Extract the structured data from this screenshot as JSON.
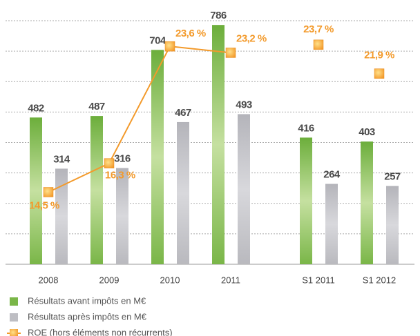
{
  "chart_data": {
    "type": "bar",
    "categories": [
      "2008",
      "2009",
      "2010",
      "2011",
      "S1 2011",
      "S1 2012"
    ],
    "ylim": [
      0,
      800
    ],
    "yticks": [
      0,
      100,
      200,
      300,
      400,
      500,
      600,
      700,
      800
    ],
    "grid": true,
    "y2lim": [
      10,
      25.2
    ],
    "series": [
      {
        "name": "Résultats avant impôts en M€",
        "color": "#7ab648",
        "values": [
          482,
          487,
          704,
          786,
          416,
          403
        ]
      },
      {
        "name": "Résultats après impôts en M€",
        "color": "#bebec3",
        "values": [
          314,
          316,
          467,
          493,
          264,
          257
        ]
      },
      {
        "name": "ROE (hors éléments non récurrents)",
        "color": "#f39a2b",
        "type": "line",
        "axis": "y2",
        "values": [
          14.5,
          16.3,
          23.6,
          23.2,
          null,
          null
        ],
        "value_labels": [
          "14,5 %",
          "16,3 %",
          "23,6 %",
          "23,2 %",
          null,
          null
        ]
      },
      {
        "color": "#f39a2b",
        "type": "markers",
        "axis": "y2",
        "values": [
          null,
          null,
          null,
          null,
          23.7,
          21.9
        ],
        "value_labels": [
          null,
          null,
          null,
          null,
          "23,7 %",
          "21,9 %"
        ]
      }
    ]
  }
}
